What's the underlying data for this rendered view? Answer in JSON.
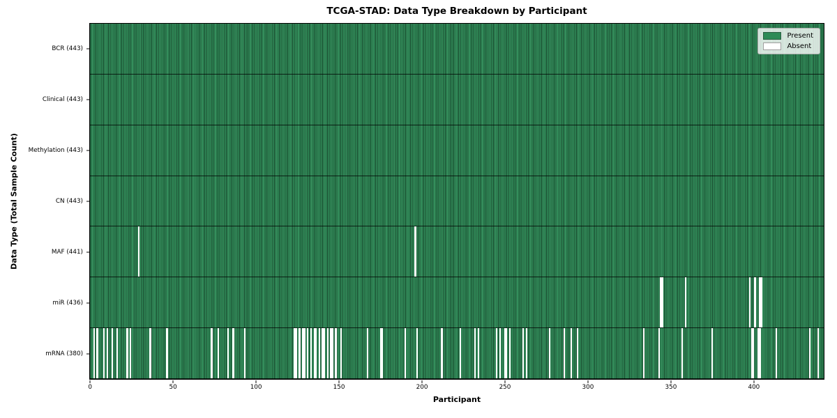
{
  "chart_data": {
    "type": "heatmap",
    "title": "TCGA-STAD: Data Type Breakdown by Participant",
    "xlabel": "Participant",
    "ylabel": "Data Type (Total Sample Count)",
    "xlim": [
      0,
      443
    ],
    "x_ticks": [
      0,
      50,
      100,
      150,
      200,
      250,
      300,
      350,
      400
    ],
    "n_participants": 443,
    "grid": false,
    "legend_position": "upper right",
    "colors": {
      "present": "#2E8B57",
      "absent": "#FFFFFF",
      "cell_edge": "#1E4A34",
      "row_separator": "#000000",
      "legend_background": "#ECEFEC"
    },
    "legend": [
      {
        "label": "Present",
        "color": "#2E8B57"
      },
      {
        "label": "Absent",
        "color": "#FFFFFF"
      }
    ],
    "rows": [
      {
        "label": "BCR (443)",
        "data_type": "BCR",
        "present_count": 443,
        "absent_participants": []
      },
      {
        "label": "Clinical (443)",
        "data_type": "Clinical",
        "present_count": 443,
        "absent_participants": []
      },
      {
        "label": "Methylation (443)",
        "data_type": "Methylation",
        "present_count": 443,
        "absent_participants": []
      },
      {
        "label": "CN (443)",
        "data_type": "CN",
        "present_count": 443,
        "absent_participants": []
      },
      {
        "label": "MAF (441)",
        "data_type": "MAF",
        "present_count": 441,
        "absent_participants": [
          29,
          196
        ]
      },
      {
        "label": "miR (436)",
        "data_type": "miR",
        "present_count": 436,
        "absent_participants": [
          344,
          345,
          359,
          398,
          401,
          404,
          405
        ]
      },
      {
        "label": "mRNA (380)",
        "data_type": "mRNA",
        "present_count": 380,
        "absent_participants": [
          2,
          4,
          8,
          10,
          13,
          16,
          22,
          24,
          36,
          46,
          73,
          77,
          83,
          86,
          93,
          123,
          124,
          126,
          128,
          129,
          131,
          133,
          135,
          136,
          138,
          140,
          141,
          143,
          145,
          146,
          148,
          151,
          167,
          175,
          176,
          190,
          197,
          212,
          223,
          232,
          234,
          245,
          247,
          250,
          251,
          253,
          261,
          263,
          277,
          286,
          290,
          294,
          334,
          343,
          357,
          375,
          399,
          400,
          403,
          404,
          414,
          434,
          439
        ]
      }
    ]
  }
}
